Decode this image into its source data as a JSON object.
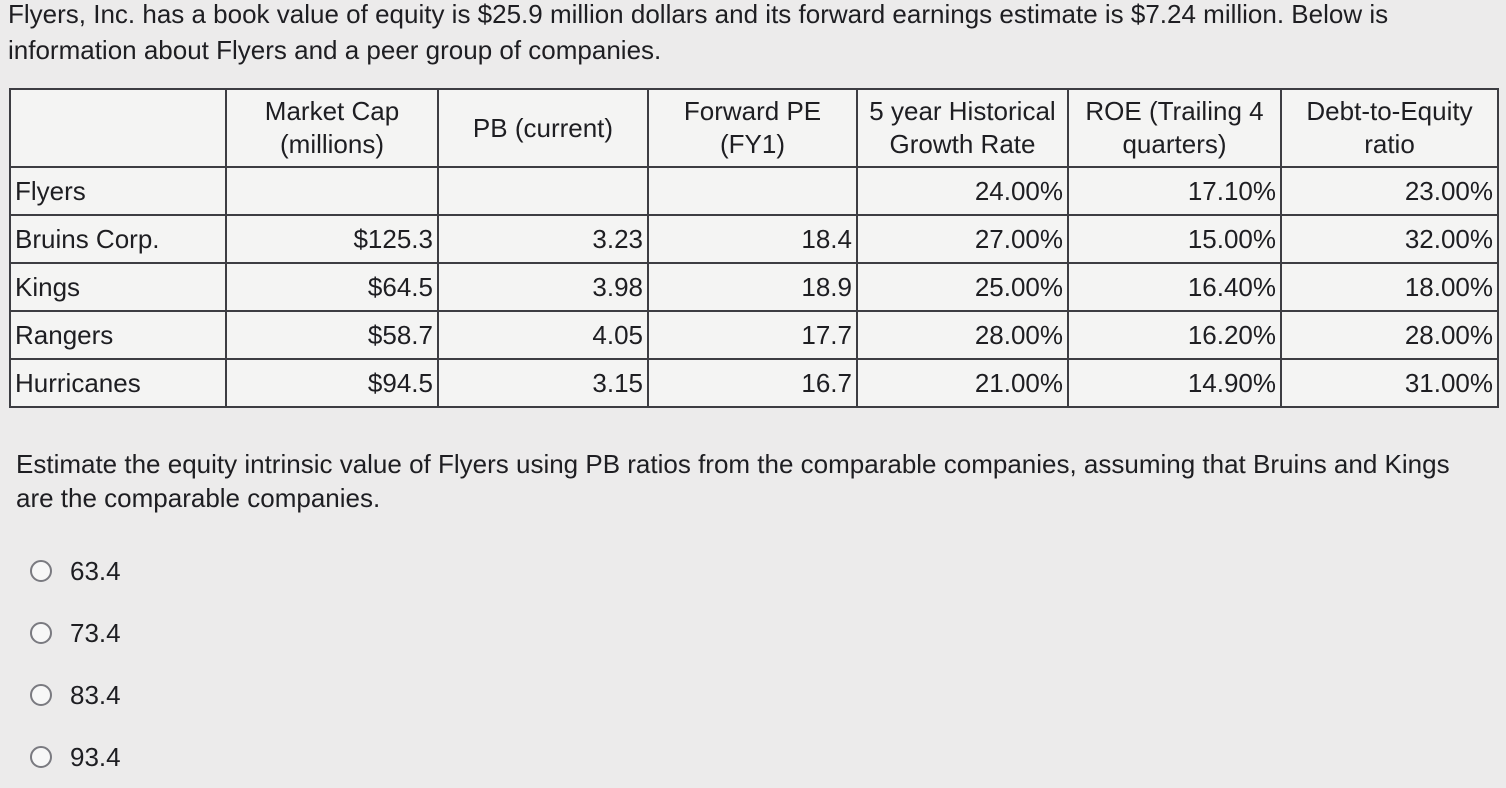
{
  "intro_text": "Flyers, Inc. has a book value of equity is $25.9 million dollars and its forward earnings estimate is $7.24 million. Below is information about Flyers and a peer group of companies.",
  "table": {
    "headers": [
      "",
      "Market Cap (millions)",
      "PB (current)",
      "Forward PE (FY1)",
      "5 year Historical Growth Rate",
      "ROE (Trailing 4 quarters)",
      "Debt-to-Equity ratio"
    ],
    "rows": [
      [
        "Flyers",
        "",
        "",
        "",
        "24.00%",
        "17.10%",
        "23.00%"
      ],
      [
        "Bruins Corp.",
        "$125.3",
        "3.23",
        "18.4",
        "27.00%",
        "15.00%",
        "32.00%"
      ],
      [
        "Kings",
        "$64.5",
        "3.98",
        "18.9",
        "25.00%",
        "16.40%",
        "18.00%"
      ],
      [
        "Rangers",
        "$58.7",
        "4.05",
        "17.7",
        "28.00%",
        "16.20%",
        "28.00%"
      ],
      [
        "Hurricanes",
        "$94.5",
        "3.15",
        "16.7",
        "21.00%",
        "14.90%",
        "31.00%"
      ]
    ]
  },
  "question_text": "Estimate the equity intrinsic value of Flyers using PB ratios from the comparable companies, assuming that Bruins and Kings are the comparable companies.",
  "options": [
    "63.4",
    "73.4",
    "83.4",
    "93.4"
  ]
}
